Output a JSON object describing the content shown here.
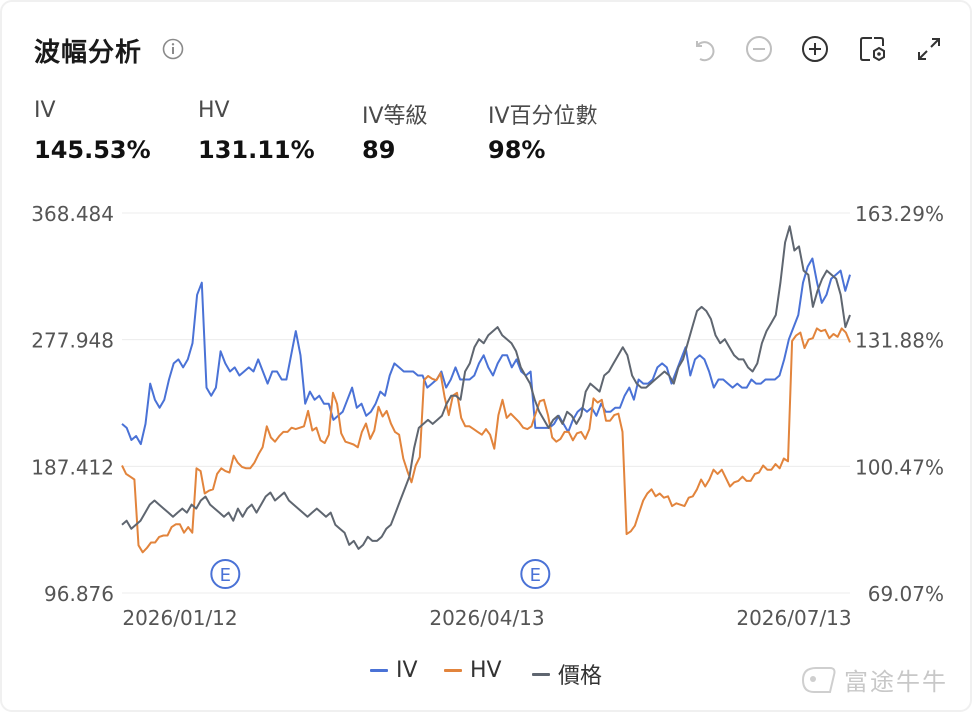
{
  "header": {
    "title": "波幅分析"
  },
  "stats": [
    {
      "label": "IV",
      "value": "145.53%"
    },
    {
      "label": "HV",
      "value": "131.11%"
    },
    {
      "label": "IV等級",
      "value": "89"
    },
    {
      "label": "IV百分位數",
      "value": "98%"
    }
  ],
  "toolbar_icons": [
    "undo-icon",
    "zoom-out-icon",
    "zoom-in-icon",
    "settings-icon",
    "fullscreen-icon"
  ],
  "legend": [
    {
      "name": "IV",
      "color": "#4a72d6"
    },
    {
      "name": "HV",
      "color": "#e2843c"
    },
    {
      "name": "價格",
      "color": "#5f6670"
    }
  ],
  "watermark": "富途牛牛",
  "chart_data": {
    "type": "line",
    "x_tick_labels": [
      "2026/01/12",
      "2026/04/13",
      "2026/07/13"
    ],
    "left_axis": {
      "labels": [
        "368.484",
        "277.948",
        "187.412",
        "96.876"
      ],
      "range": [
        96.876,
        368.484
      ]
    },
    "right_axis": {
      "labels": [
        "163.29%",
        "131.88%",
        "100.47%",
        "69.07%"
      ],
      "range": [
        69.07,
        163.29
      ]
    },
    "earnings_markers": [
      {
        "label": "E",
        "index": 22
      },
      {
        "label": "E",
        "index": 88
      }
    ],
    "series": [
      {
        "name": "IV",
        "color": "#4a72d6",
        "axis": "right",
        "values": [
          111,
          110,
          107,
          108,
          106,
          111,
          121,
          117,
          115,
          117,
          122,
          126,
          127,
          125,
          127,
          131,
          143,
          146,
          120,
          118,
          120,
          129,
          126,
          124,
          125,
          123,
          124,
          125,
          124,
          127,
          124,
          121,
          124,
          124,
          122,
          122,
          128,
          134,
          128,
          116,
          119,
          117,
          118,
          116,
          116,
          112,
          113,
          114,
          117,
          120,
          115,
          116,
          113,
          114,
          116,
          119,
          118,
          123,
          126,
          125,
          124,
          124,
          124,
          123,
          123,
          120,
          121,
          122,
          124,
          120,
          122,
          125,
          122,
          122,
          122,
          123,
          126,
          128,
          125,
          123,
          126,
          128,
          128,
          125,
          127,
          124,
          123,
          124,
          110,
          110,
          110,
          110,
          111,
          113,
          111,
          109,
          112,
          114,
          115,
          114,
          115,
          113,
          116,
          114,
          114,
          115,
          115,
          118,
          120,
          117,
          122,
          121,
          121,
          122,
          125,
          126,
          125,
          121,
          124,
          127,
          130,
          123,
          127,
          128,
          127,
          124,
          120,
          122,
          122,
          121,
          120,
          121,
          120,
          120,
          122,
          121,
          121,
          122,
          122,
          122,
          123,
          127,
          132,
          135,
          138,
          146,
          150,
          152,
          146,
          141,
          143,
          147,
          148,
          149,
          144,
          148
        ]
      },
      {
        "name": "HV",
        "color": "#e2843c",
        "axis": "left",
        "values": [
          188,
          182,
          180,
          178,
          131,
          126,
          129,
          133,
          133,
          137,
          138,
          138,
          144,
          146,
          146,
          140,
          144,
          140,
          186,
          184,
          168,
          170,
          171,
          182,
          186,
          184,
          183,
          195,
          190,
          187,
          186,
          186,
          190,
          196,
          201,
          216,
          208,
          205,
          209,
          212,
          212,
          215,
          214,
          215,
          216,
          227,
          213,
          215,
          206,
          204,
          210,
          240,
          232,
          211,
          205,
          204,
          203,
          201,
          212,
          218,
          207,
          213,
          230,
          223,
          227,
          218,
          212,
          210,
          193,
          184,
          176,
          188,
          194,
          249,
          252,
          250,
          249,
          254,
          237,
          224,
          238,
          240,
          222,
          216,
          216,
          214,
          212,
          210,
          214,
          210,
          200,
          224,
          235,
          222,
          225,
          222,
          219,
          215,
          214,
          216,
          225,
          234,
          235,
          224,
          208,
          205,
          207,
          212,
          212,
          206,
          211,
          212,
          207,
          214,
          236,
          233,
          235,
          220,
          220,
          224,
          225,
          212,
          139,
          141,
          145,
          154,
          163,
          168,
          171,
          166,
          168,
          165,
          166,
          159,
          161,
          160,
          159,
          165,
          166,
          171,
          178,
          173,
          178,
          185,
          182,
          185,
          179,
          173,
          176,
          177,
          180,
          177,
          177,
          182,
          183,
          188,
          185,
          185,
          189,
          186,
          193,
          191,
          277,
          281,
          283,
          272,
          278,
          279,
          286,
          284,
          285,
          279,
          282,
          280,
          286,
          283,
          276
        ]
      },
      {
        "name": "價格",
        "color": "#5f6670",
        "axis": "right",
        "values": [
          86,
          87,
          85,
          86,
          87,
          89,
          91,
          92,
          91,
          90,
          89,
          88,
          89,
          90,
          89,
          91,
          90,
          92,
          93,
          91,
          90,
          89,
          88,
          89,
          87,
          90,
          88,
          90,
          91,
          89,
          91,
          93,
          94,
          92,
          93,
          94,
          92,
          91,
          90,
          89,
          88,
          89,
          90,
          89,
          88,
          89,
          86,
          85,
          84,
          81,
          82,
          80,
          81,
          83,
          82,
          82,
          83,
          85,
          86,
          89,
          92,
          95,
          98,
          105,
          110,
          111,
          112,
          111,
          112,
          113,
          116,
          118,
          118,
          117,
          124,
          126,
          130,
          132,
          131,
          133,
          134,
          135,
          133,
          132,
          131,
          129,
          125,
          123,
          121,
          117,
          114,
          112,
          110,
          112,
          113,
          111,
          114,
          113,
          111,
          113,
          119,
          121,
          120,
          119,
          123,
          124,
          126,
          128,
          130,
          128,
          123,
          121,
          120,
          120,
          121,
          122,
          123,
          124,
          123,
          121,
          125,
          127,
          131,
          135,
          139,
          140,
          139,
          137,
          133,
          131,
          132,
          130,
          128,
          127,
          127,
          125,
          124,
          126,
          131,
          134,
          136,
          138,
          146,
          156,
          160,
          154,
          155,
          149,
          148,
          140,
          144,
          147,
          149,
          148,
          147,
          143,
          135,
          138
        ]
      }
    ]
  }
}
